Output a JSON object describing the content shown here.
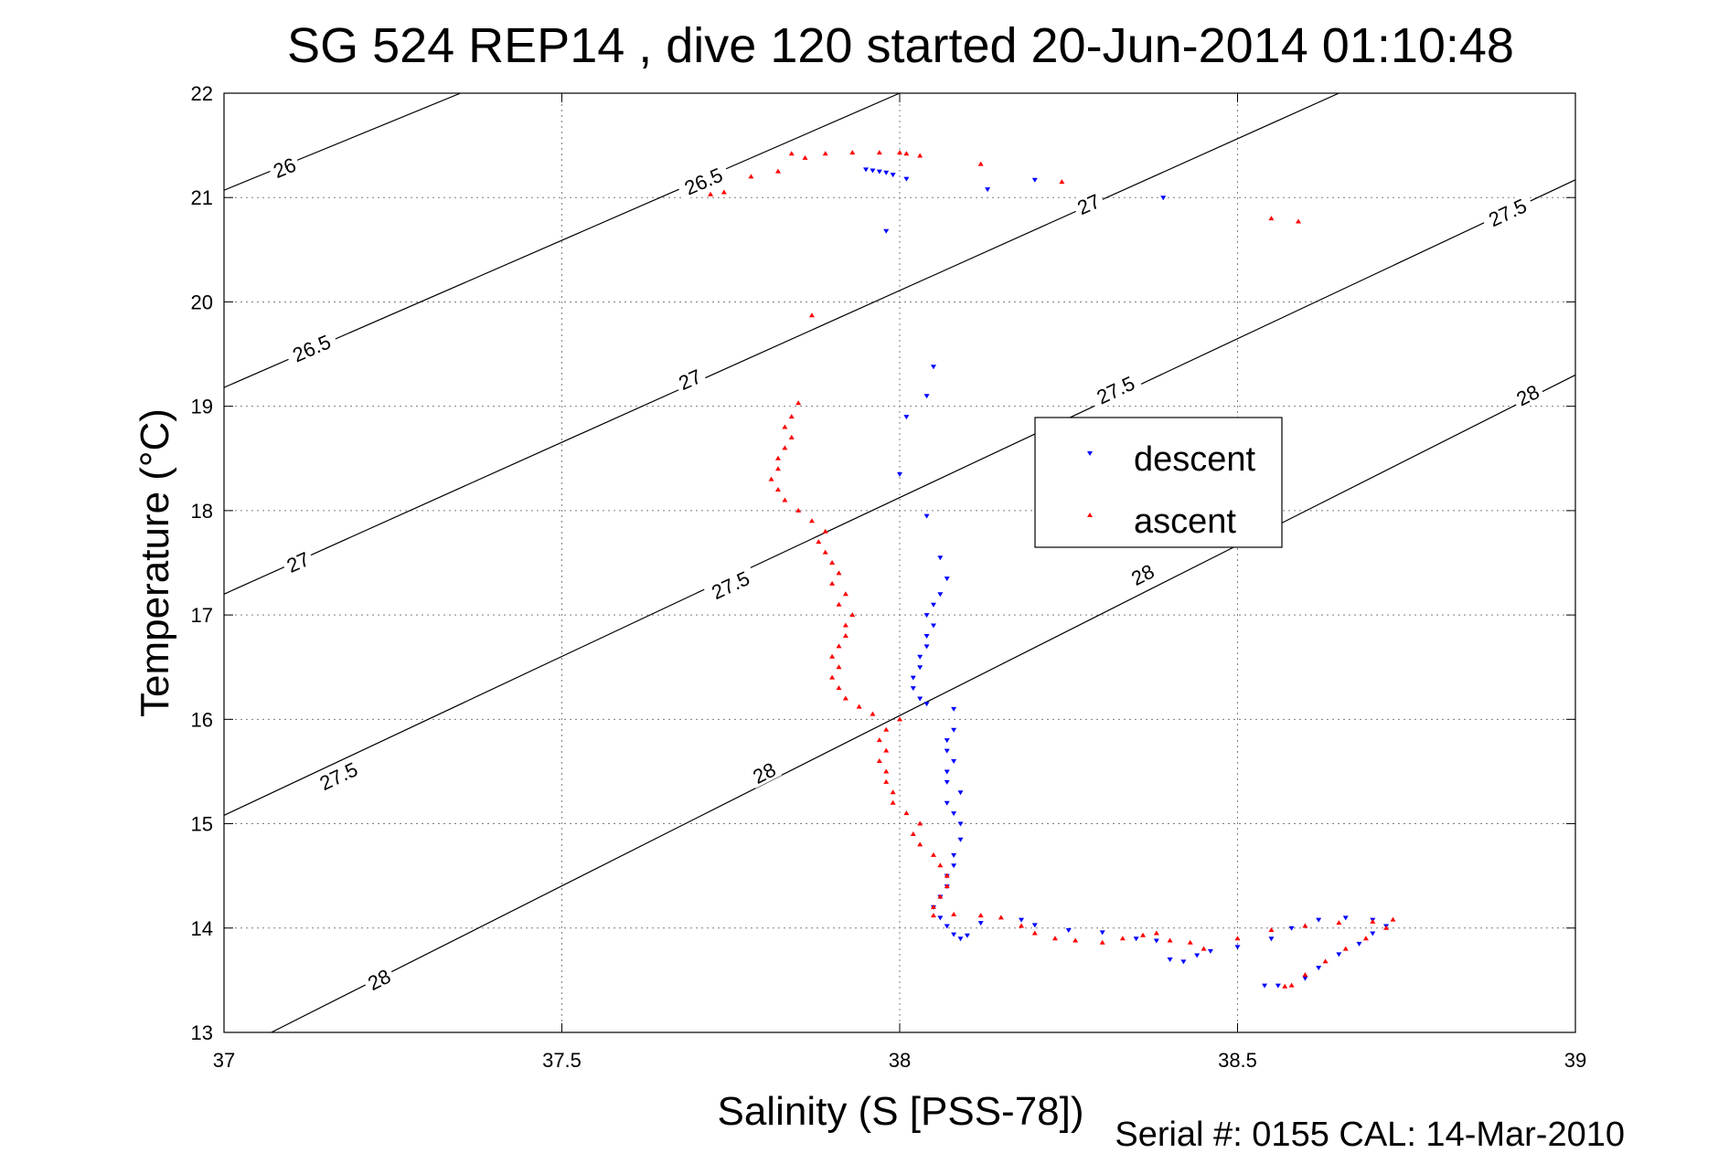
{
  "title": "SG 524   REP14  , dive 120 started 20-Jun-2014 01:10:48",
  "footer": "Serial #: 0155  CAL: 14-Mar-2010",
  "chart_data": {
    "type": "scatter",
    "xlabel": "Salinity (S [PSS-78])",
    "ylabel": "Temperature (°C)",
    "xlim": [
      37,
      39
    ],
    "ylim": [
      13,
      22
    ],
    "xticks": [
      "37",
      "37.5",
      "38",
      "38.5",
      "39"
    ],
    "yticks": [
      "13",
      "14",
      "15",
      "16",
      "17",
      "18",
      "19",
      "20",
      "21",
      "22"
    ],
    "grid": true,
    "legend_position": "center-right",
    "isopycnals": [
      {
        "label": "26",
        "points": [
          [
            37,
            21.07
          ],
          [
            37.35,
            22.0
          ]
        ],
        "label_positions": [
          [
            37.09,
            21.28
          ]
        ]
      },
      {
        "label": "26.5",
        "points": [
          [
            37,
            19.18
          ],
          [
            38.0,
            22.0
          ]
        ],
        "label_positions": [
          [
            37.13,
            19.55
          ],
          [
            37.71,
            21.15
          ]
        ]
      },
      {
        "label": "27",
        "points": [
          [
            37,
            17.2
          ],
          [
            38.65,
            22.0
          ]
        ],
        "label_positions": [
          [
            37.11,
            17.5
          ],
          [
            37.69,
            19.25
          ],
          [
            38.28,
            20.93
          ]
        ]
      },
      {
        "label": "27.5",
        "points": [
          [
            37,
            15.08
          ],
          [
            39,
            21.17
          ]
        ],
        "label_positions": [
          [
            37.17,
            15.45
          ],
          [
            37.75,
            17.28
          ],
          [
            38.32,
            19.15
          ],
          [
            38.9,
            20.85
          ]
        ]
      },
      {
        "label": "28",
        "points": [
          [
            37.07,
            13.0
          ],
          [
            39,
            19.3
          ]
        ],
        "label_positions": [
          [
            37.23,
            13.5
          ],
          [
            37.8,
            15.48
          ],
          [
            38.36,
            17.38
          ],
          [
            38.93,
            19.1
          ]
        ]
      }
    ],
    "series": [
      {
        "name": "descent",
        "color": "#0000ff",
        "marker": "triangle-down",
        "points": [
          [
            37.95,
            21.27
          ],
          [
            37.96,
            21.26
          ],
          [
            37.97,
            21.25
          ],
          [
            37.98,
            21.24
          ],
          [
            37.99,
            21.22
          ],
          [
            38.01,
            21.18
          ],
          [
            38.13,
            21.08
          ],
          [
            38.2,
            21.17
          ],
          [
            38.39,
            21.0
          ],
          [
            37.98,
            20.68
          ],
          [
            38.05,
            19.38
          ],
          [
            38.04,
            19.1
          ],
          [
            38.01,
            18.9
          ],
          [
            38.0,
            18.35
          ],
          [
            38.04,
            17.95
          ],
          [
            38.06,
            17.55
          ],
          [
            38.07,
            17.35
          ],
          [
            38.06,
            17.2
          ],
          [
            38.05,
            17.1
          ],
          [
            38.04,
            17.0
          ],
          [
            38.05,
            16.9
          ],
          [
            38.04,
            16.8
          ],
          [
            38.04,
            16.7
          ],
          [
            38.03,
            16.6
          ],
          [
            38.03,
            16.5
          ],
          [
            38.02,
            16.4
          ],
          [
            38.02,
            16.3
          ],
          [
            38.03,
            16.2
          ],
          [
            38.04,
            16.15
          ],
          [
            38.08,
            16.1
          ],
          [
            38.08,
            15.9
          ],
          [
            38.07,
            15.8
          ],
          [
            38.07,
            15.7
          ],
          [
            38.08,
            15.6
          ],
          [
            38.07,
            15.5
          ],
          [
            38.07,
            15.4
          ],
          [
            38.09,
            15.3
          ],
          [
            38.07,
            15.2
          ],
          [
            38.08,
            15.1
          ],
          [
            38.09,
            15.0
          ],
          [
            38.09,
            14.85
          ],
          [
            38.08,
            14.7
          ],
          [
            38.08,
            14.6
          ],
          [
            38.07,
            14.5
          ],
          [
            38.07,
            14.4
          ],
          [
            38.06,
            14.3
          ],
          [
            38.05,
            14.2
          ],
          [
            38.06,
            14.1
          ],
          [
            38.07,
            14.02
          ],
          [
            38.08,
            13.94
          ],
          [
            38.09,
            13.9
          ],
          [
            38.1,
            13.93
          ],
          [
            38.12,
            14.05
          ],
          [
            38.18,
            14.08
          ],
          [
            38.2,
            14.03
          ],
          [
            38.25,
            13.98
          ],
          [
            38.3,
            13.96
          ],
          [
            38.35,
            13.9
          ],
          [
            38.38,
            13.88
          ],
          [
            38.4,
            13.7
          ],
          [
            38.42,
            13.68
          ],
          [
            38.44,
            13.74
          ],
          [
            38.46,
            13.78
          ],
          [
            38.5,
            13.82
          ],
          [
            38.55,
            13.9
          ],
          [
            38.58,
            14.0
          ],
          [
            38.62,
            14.08
          ],
          [
            38.66,
            14.1
          ],
          [
            38.7,
            14.08
          ],
          [
            38.72,
            14.02
          ],
          [
            38.7,
            13.95
          ],
          [
            38.68,
            13.85
          ],
          [
            38.65,
            13.75
          ],
          [
            38.62,
            13.62
          ],
          [
            38.6,
            13.52
          ],
          [
            38.54,
            13.45
          ],
          [
            38.56,
            13.45
          ]
        ]
      },
      {
        "name": "ascent",
        "color": "#ff0000",
        "marker": "triangle-up",
        "points": [
          [
            37.72,
            21.03
          ],
          [
            37.74,
            21.05
          ],
          [
            37.78,
            21.2
          ],
          [
            37.82,
            21.25
          ],
          [
            37.84,
            21.42
          ],
          [
            37.86,
            21.38
          ],
          [
            37.89,
            21.42
          ],
          [
            37.93,
            21.43
          ],
          [
            37.97,
            21.43
          ],
          [
            38.0,
            21.43
          ],
          [
            38.01,
            21.42
          ],
          [
            38.03,
            21.4
          ],
          [
            38.12,
            21.32
          ],
          [
            38.24,
            21.15
          ],
          [
            38.55,
            20.8
          ],
          [
            38.59,
            20.77
          ],
          [
            37.87,
            19.87
          ],
          [
            37.85,
            19.03
          ],
          [
            37.84,
            18.9
          ],
          [
            37.83,
            18.8
          ],
          [
            37.84,
            18.7
          ],
          [
            37.83,
            18.6
          ],
          [
            37.82,
            18.5
          ],
          [
            37.82,
            18.4
          ],
          [
            37.81,
            18.3
          ],
          [
            37.82,
            18.2
          ],
          [
            37.83,
            18.1
          ],
          [
            37.85,
            18.0
          ],
          [
            37.87,
            17.9
          ],
          [
            37.89,
            17.8
          ],
          [
            37.88,
            17.7
          ],
          [
            37.89,
            17.6
          ],
          [
            37.9,
            17.5
          ],
          [
            37.91,
            17.4
          ],
          [
            37.9,
            17.3
          ],
          [
            37.92,
            17.2
          ],
          [
            37.91,
            17.1
          ],
          [
            37.93,
            17.0
          ],
          [
            37.92,
            16.9
          ],
          [
            37.92,
            16.8
          ],
          [
            37.91,
            16.7
          ],
          [
            37.9,
            16.6
          ],
          [
            37.91,
            16.5
          ],
          [
            37.9,
            16.4
          ],
          [
            37.91,
            16.3
          ],
          [
            37.92,
            16.2
          ],
          [
            37.94,
            16.12
          ],
          [
            37.96,
            16.05
          ],
          [
            38.0,
            16.0
          ],
          [
            37.98,
            15.9
          ],
          [
            37.97,
            15.8
          ],
          [
            37.98,
            15.7
          ],
          [
            37.97,
            15.6
          ],
          [
            37.98,
            15.5
          ],
          [
            37.98,
            15.4
          ],
          [
            37.99,
            15.3
          ],
          [
            37.99,
            15.2
          ],
          [
            38.01,
            15.1
          ],
          [
            38.03,
            15.0
          ],
          [
            38.02,
            14.9
          ],
          [
            38.03,
            14.8
          ],
          [
            38.05,
            14.7
          ],
          [
            38.06,
            14.6
          ],
          [
            38.07,
            14.5
          ],
          [
            38.07,
            14.4
          ],
          [
            38.06,
            14.3
          ],
          [
            38.05,
            14.2
          ],
          [
            38.05,
            14.12
          ],
          [
            38.08,
            14.13
          ],
          [
            38.12,
            14.12
          ],
          [
            38.15,
            14.1
          ],
          [
            38.18,
            14.02
          ],
          [
            38.2,
            13.95
          ],
          [
            38.23,
            13.9
          ],
          [
            38.26,
            13.88
          ],
          [
            38.3,
            13.86
          ],
          [
            38.33,
            13.9
          ],
          [
            38.36,
            13.93
          ],
          [
            38.38,
            13.95
          ],
          [
            38.4,
            13.88
          ],
          [
            38.43,
            13.86
          ],
          [
            38.45,
            13.8
          ],
          [
            38.5,
            13.9
          ],
          [
            38.55,
            13.98
          ],
          [
            38.6,
            14.02
          ],
          [
            38.65,
            14.05
          ],
          [
            38.7,
            14.06
          ],
          [
            38.73,
            14.08
          ],
          [
            38.72,
            14.0
          ],
          [
            38.69,
            13.9
          ],
          [
            38.66,
            13.8
          ],
          [
            38.63,
            13.68
          ],
          [
            38.6,
            13.55
          ],
          [
            38.58,
            13.45
          ],
          [
            38.57,
            13.44
          ]
        ]
      }
    ]
  }
}
